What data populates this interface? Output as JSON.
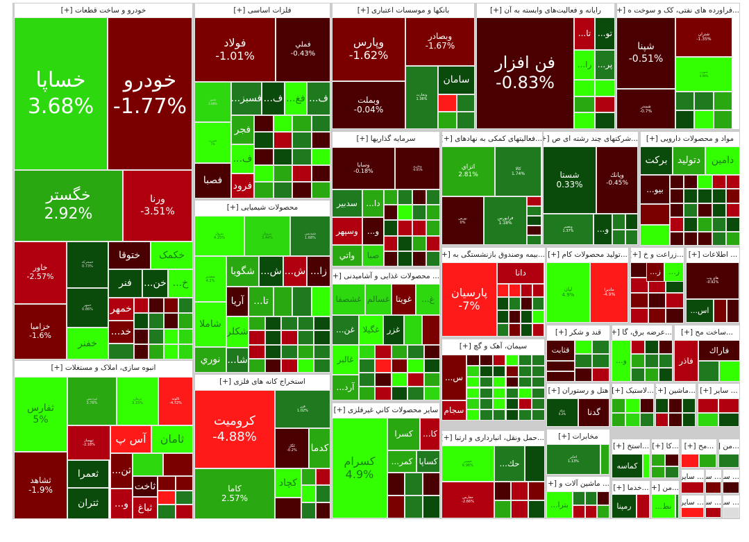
{
  "colors": {
    "dark_red": "#4a0000",
    "red": "#7a0000",
    "mid_red": "#b00010",
    "bright_red": "#ff1a1a",
    "dark_green": "#0a4a0a",
    "mid_green": "#1f7a1f",
    "green": "#2aa812",
    "bright_green": "#33ff00",
    "lime": "#2ed80e"
  },
  "chart_data": {
    "type": "treemap",
    "title": "",
    "sectors": [
      {
        "name": "خودرو و ساخت قطعات",
        "tiles": [
          {
            "s": "خساپا",
            "v": 3.68
          },
          {
            "s": "خودرو",
            "v": -1.77
          },
          {
            "s": "خگستر",
            "v": 2.92
          },
          {
            "s": "ورنا",
            "v": -3.51
          },
          {
            "s": "خاور",
            "v": -2.57
          },
          {
            "s": "خزامیا",
            "v": -1.6
          },
          {
            "s": "خمحرکه",
            "v": 0.73
          },
          {
            "s": "خمهر",
            "v": 0.86
          },
          {
            "s": "ختوقا"
          },
          {
            "s": "خکمک"
          },
          {
            "s": "فنر"
          },
          {
            "s": "خن..."
          },
          {
            "s": "خ..."
          },
          {
            "s": "خمهر"
          },
          {
            "s": "خد..."
          },
          {
            "s": "خفنر"
          }
        ]
      },
      {
        "name": "انبوه سازی، املاک و مستغلات",
        "tiles": [
          {
            "s": "ثفارس",
            "v": 5
          },
          {
            "s": "ثپردیس",
            "v": 3.78
          },
          {
            "s": "ثرمان",
            "v": 3.15
          },
          {
            "s": "ثالوند",
            "v": -4.72
          },
          {
            "s": "ثشاهد",
            "v": -1.9
          },
          {
            "s": "ثبهساز",
            "v": -2.18
          },
          {
            "s": "آس پ"
          },
          {
            "s": "ثامان"
          },
          {
            "s": "ثعمرا"
          },
          {
            "s": "ثتران"
          },
          {
            "s": "ثن..."
          },
          {
            "s": "ثاخت"
          },
          {
            "s": "و..."
          },
          {
            "s": "ثباغ"
          }
        ]
      },
      {
        "name": "فلزات اساسی",
        "tiles": [
          {
            "s": "فولاد",
            "v": -1.01
          },
          {
            "s": "فملي",
            "v": -0.43
          },
          {
            "s": "فخوز",
            "v": 3.08
          },
          {
            "s": "فسرب",
            "v": 7
          },
          {
            "s": "فسبز..."
          },
          {
            "s": "ف..."
          },
          {
            "s": "فغ..."
          },
          {
            "s": "فجر"
          },
          {
            "s": "فصبا"
          },
          {
            "s": "فرود"
          }
        ]
      },
      {
        "name": "محصولات شیمیایی",
        "tiles": [
          {
            "s": "پترول",
            "v": 4.25
          },
          {
            "s": "پتروبل",
            "v": 3.44
          },
          {
            "s": "شپدیس",
            "v": 1.68
          },
          {
            "s": "شغدیر",
            "v": 4.2
          },
          {
            "s": "شگویا"
          },
          {
            "s": "ش..."
          },
          {
            "s": "زا..."
          },
          {
            "s": "آریا"
          },
          {
            "s": "تا..."
          },
          {
            "s": "شاملا"
          },
          {
            "s": "شکلر"
          },
          {
            "s": "نوري"
          },
          {
            "s": "شا..."
          }
        ]
      },
      {
        "name": "استخراج کانه های فلزی",
        "tiles": [
          {
            "s": "کرومیت",
            "v": -4.88
          },
          {
            "s": "فزر",
            "v": 1.02
          },
          {
            "s": "کگل",
            "v": -0.2
          },
          {
            "s": "کدما"
          },
          {
            "s": "کاما",
            "v": 2.57
          },
          {
            "s": "کچاد"
          }
        ]
      },
      {
        "name": "بانکها و موسسات اعتباری",
        "tiles": [
          {
            "s": "وپارس",
            "v": -1.62
          },
          {
            "s": "وبصادر",
            "v": -1.67
          },
          {
            "s": "وبملت",
            "v": -0.04
          },
          {
            "s": "وتجارت",
            "v": 1.36
          },
          {
            "s": "سامان"
          }
        ]
      },
      {
        "name": "سرمایه گذاریها",
        "tiles": [
          {
            "s": "وسایا",
            "v": -0.18
          },
          {
            "s": "وخارزم",
            "v": -0.05
          },
          {
            "s": "سدبير"
          },
          {
            "s": "دا..."
          },
          {
            "s": "وسپهر"
          },
          {
            "s": "و..."
          },
          {
            "s": "واتي"
          },
          {
            "s": "صبا"
          }
        ]
      },
      {
        "name": "محصولات غذایی و آشامیدنی ...",
        "tiles": [
          {
            "s": "غشصفا"
          },
          {
            "s": "غسالم"
          },
          {
            "s": "غویتا"
          },
          {
            "s": "غ..."
          },
          {
            "s": "غن..."
          },
          {
            "s": "غگیلا"
          },
          {
            "s": "غزر"
          },
          {
            "s": "غالبر"
          },
          {
            "s": "آرد..."
          }
        ]
      },
      {
        "name": "سایر محصولات کاني غیرفلزی",
        "tiles": [
          {
            "s": "کسرام",
            "v": 4.9
          },
          {
            "s": "کسرا"
          },
          {
            "s": "کا..."
          },
          {
            "s": "کمر..."
          },
          {
            "s": "کساپا"
          }
        ]
      },
      {
        "name": "رایانه و فعالیت‌های وابسته به آن",
        "tiles": [
          {
            "s": "فن افزار",
            "v": -0.83
          },
          {
            "s": "تا..."
          },
          {
            "s": "تو..."
          },
          {
            "s": "را..."
          },
          {
            "s": "پر..."
          }
        ]
      },
      {
        "name": "فراورده های نفتی، کک و سوخت ه...",
        "tiles": [
          {
            "s": "شپنا",
            "v": -0.51
          },
          {
            "s": "شتران",
            "v": -1.35
          },
          {
            "s": "شبهرن",
            "v": 4.99
          },
          {
            "s": "شبندر",
            "v": -0.7
          }
        ]
      },
      {
        "name": "فعالیتهای کمکی به نهادهای ...",
        "tiles": [
          {
            "s": "اتزاي",
            "v": 2.81
          },
          {
            "s": "کالا",
            "v": 1.74
          },
          {
            "s": "بورس",
            "v": 0
          },
          {
            "s": "فرابورس",
            "v": 1.18
          }
        ]
      },
      {
        "name": "شرکتهای چند رشته ای ص...",
        "tiles": [
          {
            "s": "شستا",
            "v": 0.33
          },
          {
            "s": "وپانك",
            "v": -0.45
          },
          {
            "s": "وبصير",
            "v": 1.37
          },
          {
            "s": "و..."
          }
        ]
      },
      {
        "name": "مواد و محصولات دارویی",
        "tiles": [
          {
            "s": "برکت"
          },
          {
            "s": "دتولید"
          },
          {
            "s": "دامین"
          },
          {
            "s": "بیو..."
          }
        ]
      },
      {
        "name": "بیمه وصندوق بازنشستگی به ...",
        "tiles": [
          {
            "s": "پارسیان",
            "v": -7
          },
          {
            "s": "دانا"
          }
        ]
      },
      {
        "name": "تولید محصولات کام...",
        "tiles": [
          {
            "s": "لپان",
            "v": 4.9
          },
          {
            "s": "ماديرا",
            "v": -4.9
          }
        ]
      },
      {
        "name": "زراعت و خ...",
        "tiles": [
          {
            "s": "ز..."
          },
          {
            "s": "ز..."
          }
        ]
      },
      {
        "name": "اطلاعات ...",
        "tiles": [
          {
            "s": "هاي وب",
            "v": -0.92
          },
          {
            "s": "اس..."
          }
        ]
      },
      {
        "name": "سیمان، آهک و گچ",
        "tiles": [
          {
            "s": "س..."
          },
          {
            "s": "سجام"
          }
        ]
      },
      {
        "name": "حمل ونقل، انبارداری و ارتبا...",
        "tiles": [
          {
            "s": "حسير",
            "v": 6.96
          },
          {
            "s": "حك..."
          },
          {
            "s": "حفارس",
            "v": -2.66
          }
        ]
      },
      {
        "name": "قند و شکر",
        "tiles": [
          {
            "s": "قثابت"
          }
        ]
      },
      {
        "name": "عرضه برق، گا...",
        "tiles": [
          {
            "s": "و..."
          }
        ]
      },
      {
        "name": "ساخت مح...",
        "tiles": [
          {
            "s": "فاراك"
          },
          {
            "s": "فاذر"
          }
        ]
      },
      {
        "name": "هتل و رستوران",
        "tiles": [
          {
            "s": "سكه",
            "v": 0.2
          },
          {
            "s": "گدنا"
          }
        ]
      },
      {
        "name": "لاستیک...",
        "tiles": []
      },
      {
        "name": "ماشین...",
        "tiles": []
      },
      {
        "name": "سایر ...",
        "tiles": []
      },
      {
        "name": "مخابرات",
        "tiles": [
          {
            "s": "اخابر",
            "v": 1.13
          }
        ]
      },
      {
        "name": "استخ...",
        "tiles": [
          {
            "s": "کماسه"
          }
        ]
      },
      {
        "name": "کا...",
        "tiles": []
      },
      {
        "name": "مح...",
        "tiles": []
      },
      {
        "name": "ماشین آلات و ...",
        "tiles": [
          {
            "s": "بترا..."
          }
        ]
      },
      {
        "name": "خدما...",
        "tiles": [
          {
            "s": "رمپنا"
          }
        ]
      },
      {
        "name": "من...",
        "tiles": [
          {
            "s": "نط..."
          }
        ]
      }
    ]
  },
  "plus": "[+]",
  "sectors": {
    "auto": {
      "title": "خودرو و ساخت قطعات [+]"
    },
    "mass": {
      "title": "انبوه سازی، املاک و مستغلات [+]"
    },
    "metals": {
      "title": "فلزات اساسی [+]"
    },
    "chem": {
      "title": "محصولات شیمیایی [+]"
    },
    "mining": {
      "title": "استخراج کانه های فلزی [+]"
    },
    "banks": {
      "title": "بانکها و موسسات اعتباری [+]"
    },
    "invest": {
      "title": "سرمایه گذاریها [+]"
    },
    "food": {
      "title": "... محصولات غذایی و آشامیدنی [+]"
    },
    "nonmetal": {
      "title": "سایر محصولات کاني غیرفلزی [+]"
    },
    "computer": {
      "title": "رایانه و فعالیت‌های وابسته به آن [+]"
    },
    "oil": {
      "title": "...فراورده های نفتی، کک و سوخت ه [+]"
    },
    "support": {
      "title": "...فعالیتهای کمکی به نهادهای [+]"
    },
    "multi": {
      "title": "...شرکتهای چند رشته ای ص [+]"
    },
    "pharma": {
      "title": "مواد و محصولات دارویی [+]"
    },
    "insur": {
      "title": "...بیمه وصندوق بازنشستگی به [+]"
    },
    "comp": {
      "title": "...تولید محصولات کام [+]"
    },
    "agri": {
      "title": "...زراعت و خ [+]"
    },
    "info": {
      "title": "... اطلاعات [+]"
    },
    "cement": {
      "title": "سیمان، آهک و گچ [+]"
    },
    "transport": {
      "title": "...حمل ونقل، انبارداری و ارتبا [+]"
    },
    "sugar": {
      "title": "قند و شکر [+]"
    },
    "power": {
      "title": "...عرضه برق، گا [+]"
    },
    "build": {
      "title": "...ساخت مح [+]"
    },
    "hotel": {
      "title": "هتل و رستوران [+]"
    },
    "rubber": {
      "title": "...لاستیک [+]"
    },
    "mach": {
      "title": "...ماشین [+]"
    },
    "other": {
      "title": "... سایر [+]"
    },
    "telecom": {
      "title": "مخابرات [+]"
    },
    "extract": {
      "title": "...استخ [+]"
    },
    "ka": {
      "title": "...کا [+]"
    },
    "moh": {
      "title": "...مح [+]"
    },
    "machinery": {
      "title": "... ماشین آلات و [+]"
    },
    "services": {
      "title": "...خدما [+]"
    },
    "mn": {
      "title": "...من [+]"
    }
  },
  "tiles": {
    "khsapa": {
      "n": "خساپا",
      "p": "3.68%"
    },
    "khodro": {
      "n": "خودرو",
      "p": "-1.77%"
    },
    "khgostar": {
      "n": "خگستر",
      "p": "2.92%"
    },
    "varna": {
      "n": "ورنا",
      "p": "-3.51%"
    },
    "khavar": {
      "n": "خاور",
      "p": "-2.57%"
    },
    "khzamia": {
      "n": "خزامیا",
      "p": "-1.6%"
    },
    "khmoharreke": {
      "n": "خمحرکه",
      "p": "0.73%"
    },
    "khmehr2": {
      "n": "خمهر",
      "p": "0.86%"
    },
    "khtooqa": {
      "n": "ختوقا"
    },
    "khkomak": {
      "n": "خکمک"
    },
    "fanar": {
      "n": "فنر"
    },
    "khn": {
      "n": "...خن"
    },
    "kh": {
      "n": "...خ"
    },
    "khmehr": {
      "n": "خمهر"
    },
    "khd": {
      "n": "...خد"
    },
    "khfanar": {
      "n": "خفنر"
    },
    "sfars": {
      "n": "ثفارس",
      "p": "5%"
    },
    "spardis": {
      "n": "ثپردیس",
      "p": "3.78%"
    },
    "sarman": {
      "n": "ثرمان",
      "p": "3.15%"
    },
    "salvand": {
      "n": "ثالوند",
      "p": "-4.72%"
    },
    "sshahed": {
      "n": "ثشاهد",
      "p": "-1.9%"
    },
    "sbehsaz": {
      "n": "ثبهساز",
      "p": "-2.18%"
    },
    "asp": {
      "n": "آس پ"
    },
    "saman2": {
      "n": "ثامان"
    },
    "samra": {
      "n": "ثعمرا"
    },
    "stran": {
      "n": "ثتران"
    },
    "sn": {
      "n": "...ثن"
    },
    "sakht": {
      "n": "ثاخت"
    },
    "vdots": {
      "n": "...و"
    },
    "sbagh": {
      "n": "ثباغ"
    },
    "foolad": {
      "n": "فولاد",
      "p": "-1.01%"
    },
    "fameli": {
      "n": "فملي",
      "p": "-0.43%"
    },
    "fkhooz": {
      "n": "فخوز",
      "p": "3.08%"
    },
    "fsorb": {
      "n": "فسرب",
      "p": "7%"
    },
    "fsabz": {
      "n": "...فسبز"
    },
    "f1": {
      "n": "...ف"
    },
    "fgh": {
      "n": "...فغ"
    },
    "f2": {
      "n": "...ف"
    },
    "fajr": {
      "n": "فجر"
    },
    "f3": {
      "n": "...ف"
    },
    "fsaba": {
      "n": "فصبا"
    },
    "foroud": {
      "n": "فرود"
    },
    "petrol": {
      "n": "پترول",
      "p": "4.25%"
    },
    "petrobol": {
      "n": "پتروبل",
      "p": "3.44%"
    },
    "shpdis": {
      "n": "شپدیس",
      "p": "1.68%"
    },
    "shghadir": {
      "n": "شغدیر",
      "p": "4.2%"
    },
    "shgooya": {
      "n": "شگویا"
    },
    "sh1": {
      "n": "...ش"
    },
    "sh2": {
      "n": "...ش"
    },
    "za": {
      "n": "...زا"
    },
    "arya": {
      "n": "آریا"
    },
    "ta": {
      "n": "...تا"
    },
    "shamla": {
      "n": "شاملا"
    },
    "shklor": {
      "n": "شکلر"
    },
    "noori": {
      "n": "نوري"
    },
    "sha": {
      "n": "...شا"
    },
    "kromit": {
      "n": "کرومیت",
      "p": "-4.88%"
    },
    "fzar": {
      "n": "فزر",
      "p": "1.02%"
    },
    "kgol": {
      "n": "کگل",
      "p": "-0.2%"
    },
    "kdama": {
      "n": "کدما"
    },
    "kama": {
      "n": "کاما",
      "p": "2.57%"
    },
    "kchad": {
      "n": "کچاد"
    },
    "vpars": {
      "n": "وپارس",
      "p": "-1.62%"
    },
    "vbsader": {
      "n": "وبصادر",
      "p": "-1.67%"
    },
    "vbmellat": {
      "n": "وبملت",
      "p": "-0.04%"
    },
    "vtejarat": {
      "n": "وتجارت",
      "p": "1.36%"
    },
    "saman": {
      "n": "سامان"
    },
    "vsapa": {
      "n": "وسایا",
      "p": "-0.18%"
    },
    "vkharazm": {
      "n": "وخارزم",
      "p": "-0.05%"
    },
    "sadbir": {
      "n": "سدبير"
    },
    "da": {
      "n": "...دا"
    },
    "vsepehr": {
      "n": "وسپهر"
    },
    "v2": {
      "n": "...و"
    },
    "vati": {
      "n": "واتي"
    },
    "saba": {
      "n": "صبا"
    },
    "ghshsafa": {
      "n": "غشصفا"
    },
    "ghsalem": {
      "n": "غسالم"
    },
    "ghvita": {
      "n": "غویتا"
    },
    "gh1": {
      "n": "...غ"
    },
    "ghn": {
      "n": "...غن"
    },
    "ghgila": {
      "n": "غگیلا"
    },
    "ghzar": {
      "n": "غزر"
    },
    "ghalbor": {
      "n": "غالبر"
    },
    "ard": {
      "n": "...آرد"
    },
    "ksram": {
      "n": "کسرام",
      "p": "4.9%"
    },
    "ksra": {
      "n": "کسرا"
    },
    "ka1": {
      "n": "...کا"
    },
    "kmar": {
      "n": "...کمر"
    },
    "ksapa": {
      "n": "کساپا"
    },
    "fanafzar": {
      "n": "فن افزار",
      "p": "-0.83%"
    },
    "ta2": {
      "n": "...تا"
    },
    "to": {
      "n": "...تو"
    },
    "ra": {
      "n": "...را"
    },
    "par": {
      "n": "...پر"
    },
    "shpna": {
      "n": "شپنا",
      "p": "-0.51%"
    },
    "shtran": {
      "n": "شتران",
      "p": "-1.35%"
    },
    "shbhrn": {
      "n": "شبهرن",
      "p": "4.99%"
    },
    "shbandar": {
      "n": "شبندر",
      "p": "-0.7%"
    },
    "atrazi": {
      "n": "اتزاي",
      "p": "2.81%"
    },
    "kala": {
      "n": "کالا",
      "p": "1.74%"
    },
    "bourse": {
      "n": "بورس",
      "p": "0%"
    },
    "farabourse": {
      "n": "فرابورس",
      "p": "1.18%"
    },
    "shasta": {
      "n": "شستا",
      "p": "0.33%"
    },
    "vbank": {
      "n": "وپانك",
      "p": "-0.45%"
    },
    "vbasir": {
      "n": "وبصير",
      "p": "1.37%"
    },
    "v3": {
      "n": "...و"
    },
    "barkat": {
      "n": "برکت"
    },
    "dtolid": {
      "n": "دتولید"
    },
    "damin": {
      "n": "دامین"
    },
    "bio": {
      "n": "...بیو"
    },
    "parsian": {
      "n": "پارسیان",
      "p": "-7%"
    },
    "dana": {
      "n": "دانا"
    },
    "lpan": {
      "n": "لپان",
      "p": "4.9%"
    },
    "madira": {
      "n": "ماديرا",
      "p": "-4.9%"
    },
    "z1": {
      "n": "...ز"
    },
    "z2": {
      "n": "...ز"
    },
    "haiweb": {
      "n": "هاي وب",
      "p": "-0.92%"
    },
    "as": {
      "n": "...اس"
    },
    "s_c": {
      "n": "...س"
    },
    "sjam": {
      "n": "سجام"
    },
    "hsir": {
      "n": "حسير",
      "p": "6.96%"
    },
    "hk": {
      "n": "...حك"
    },
    "hfars": {
      "n": "حفارس",
      "p": "-2.66%"
    },
    "qsabet": {
      "n": "قثابت"
    },
    "v4": {
      "n": "...و"
    },
    "farak": {
      "n": "فاراك"
    },
    "fazar": {
      "n": "فاذر"
    },
    "sekke": {
      "n": "سكه",
      "p": "0.2%"
    },
    "gdna": {
      "n": "گدنا"
    },
    "akhaber": {
      "n": "اخابر",
      "p": "1.13%"
    },
    "kmase": {
      "n": "کماسه"
    },
    "btra": {
      "n": "...بترا"
    },
    "rampna": {
      "n": "رمپنا"
    },
    "nat": {
      "n": "...نط"
    }
  }
}
